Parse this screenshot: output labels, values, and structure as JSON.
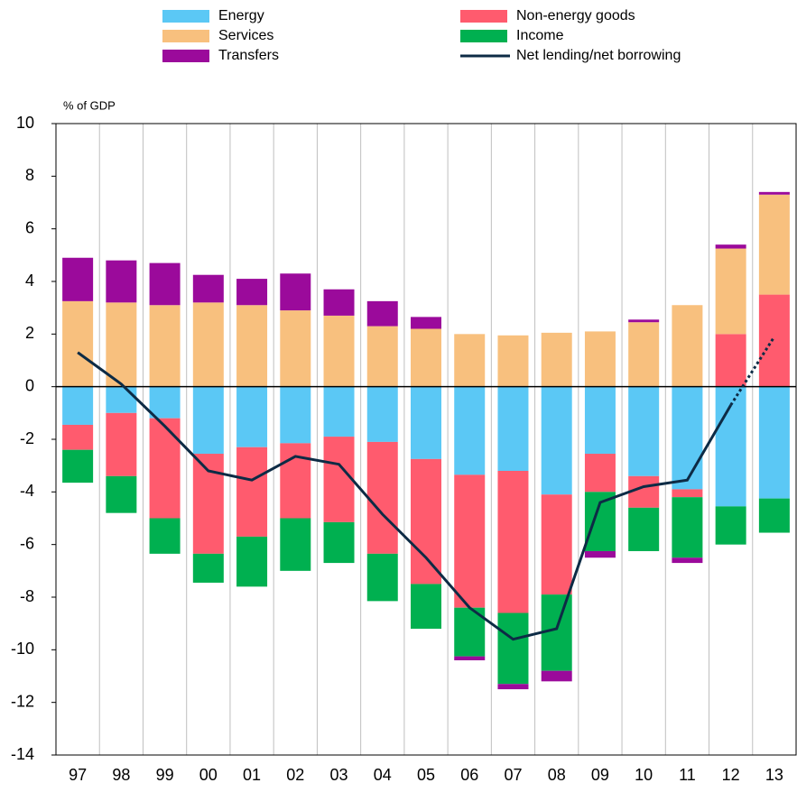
{
  "chart_data": {
    "type": "bar",
    "y_label": "% of GDP",
    "categories": [
      "97",
      "98",
      "99",
      "00",
      "01",
      "02",
      "03",
      "04",
      "05",
      "06",
      "07",
      "08",
      "09",
      "10",
      "11",
      "12",
      "13"
    ],
    "series": [
      {
        "name": "Energy",
        "color": "#5bc8f5",
        "values": [
          -1.45,
          -1.0,
          -1.2,
          -2.55,
          -2.3,
          -2.15,
          -1.9,
          -2.1,
          -2.75,
          -3.35,
          -3.2,
          -4.1,
          -2.55,
          -3.4,
          -3.9,
          -4.55,
          -4.25
        ]
      },
      {
        "name": "Non-energy goods",
        "color": "#ff5b6e",
        "values": [
          -0.95,
          -2.4,
          -3.8,
          -3.8,
          -3.4,
          -2.85,
          -3.25,
          -4.25,
          -4.75,
          -5.05,
          -5.4,
          -3.8,
          -1.45,
          -1.2,
          -0.3,
          2.0,
          3.5
        ]
      },
      {
        "name": "Services",
        "color": "#f8c07e",
        "values": [
          3.25,
          3.2,
          3.1,
          3.2,
          3.1,
          2.9,
          2.7,
          2.3,
          2.2,
          2.0,
          1.95,
          2.05,
          2.1,
          2.45,
          3.1,
          3.25,
          3.8
        ]
      },
      {
        "name": "Income",
        "color": "#00b050",
        "values": [
          -1.25,
          -1.4,
          -1.35,
          -1.1,
          -1.9,
          -2.0,
          -1.55,
          -1.8,
          -1.7,
          -1.85,
          -2.7,
          -2.9,
          -2.25,
          -1.65,
          -2.3,
          -1.45,
          -1.3
        ]
      },
      {
        "name": "Transfers",
        "color": "#9b0a9b",
        "values": [
          1.65,
          1.6,
          1.6,
          1.05,
          1.0,
          1.4,
          1.0,
          0.95,
          0.45,
          -0.15,
          -0.2,
          -0.4,
          -0.25,
          0.1,
          -0.2,
          0.15,
          0.1
        ]
      },
      {
        "name": "Net lending/net borrowing",
        "type": "line",
        "color": "#0d2b45",
        "dashed_from_index": 15,
        "values": [
          1.3,
          0.1,
          -1.5,
          -3.2,
          -3.55,
          -2.65,
          -2.95,
          -4.85,
          -6.5,
          -8.4,
          -9.6,
          -9.2,
          -4.4,
          -3.8,
          -3.55,
          -0.7,
          1.9
        ]
      }
    ],
    "ylim": [
      -14,
      10
    ],
    "yticks": [
      -14,
      -12,
      -10,
      -8,
      -6,
      -4,
      -2,
      0,
      2,
      4,
      6,
      8,
      10
    ],
    "grid": "x"
  }
}
